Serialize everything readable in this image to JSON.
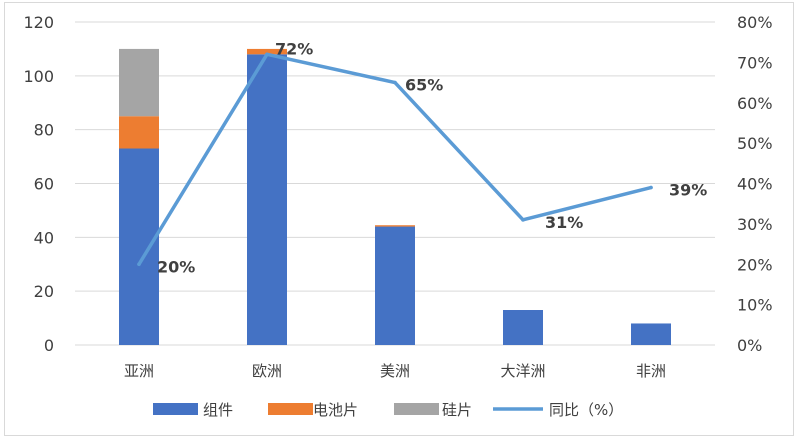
{
  "chart_data": {
    "type": "bar",
    "categories": [
      "亚洲",
      "欧洲",
      "美洲",
      "大洋洲",
      "非洲"
    ],
    "series": [
      {
        "name": "组件",
        "type": "bar",
        "axis": "left",
        "color": "#4472c4",
        "values": [
          73,
          108,
          44,
          13,
          8
        ]
      },
      {
        "name": "电池片",
        "type": "bar",
        "axis": "left",
        "color": "#ed7d31",
        "values": [
          12,
          2,
          0.5,
          0,
          0
        ]
      },
      {
        "name": "硅片",
        "type": "bar",
        "axis": "left",
        "color": "#a5a5a5",
        "values": [
          25,
          0,
          0,
          0,
          0
        ]
      },
      {
        "name": "同比（%）",
        "type": "line",
        "axis": "right",
        "color": "#5b9bd5",
        "values": [
          20,
          72,
          65,
          31,
          39
        ],
        "labels": [
          "20%",
          "72%",
          "65%",
          "31%",
          "39%"
        ]
      }
    ],
    "stacked": true,
    "left_axis": {
      "ylim": [
        0,
        120
      ],
      "ticks": [
        "0",
        "20",
        "40",
        "60",
        "80",
        "100",
        "120"
      ]
    },
    "right_axis": {
      "ylim": [
        0,
        80
      ],
      "ticks": [
        "0%",
        "10%",
        "20%",
        "30%",
        "40%",
        "50%",
        "60%",
        "70%",
        "80%"
      ]
    },
    "grid": true,
    "legend_position": "bottom"
  }
}
